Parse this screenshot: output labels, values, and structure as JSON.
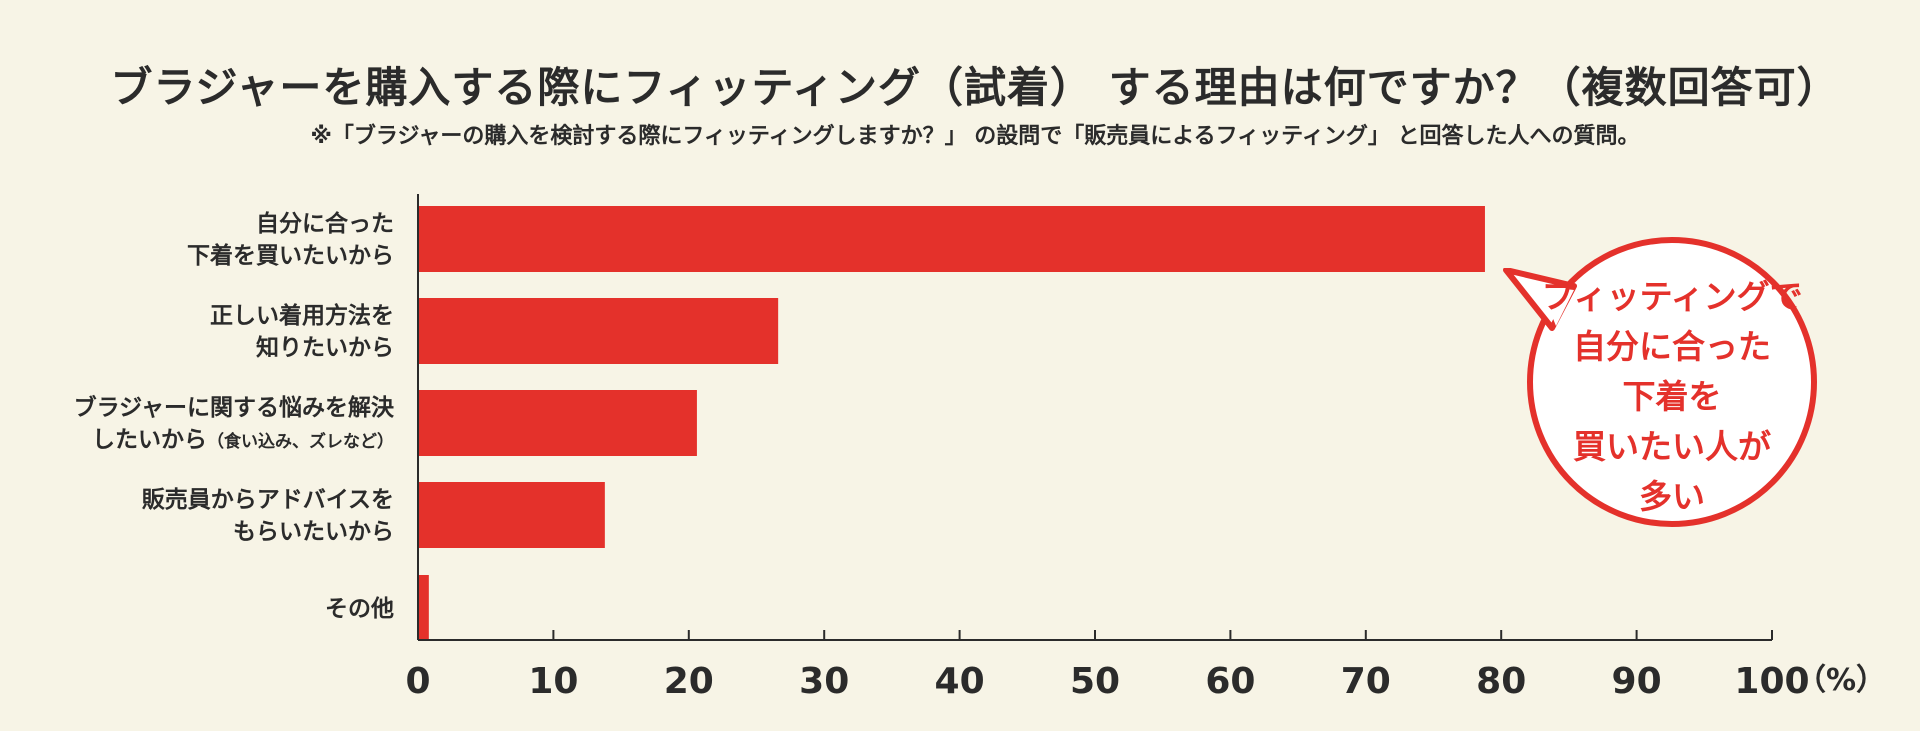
{
  "title": "ブラジャーを購入する際にフィッティング（試着） する理由は何ですか？（複数回答可）",
  "subtitle": "※「ブラジャーの購入を検討する際にフィッティングしますか？」 の設問で「販売員によるフィッティング」 と回答した人への質問。",
  "callout": {
    "lines": [
      "フィッティングで",
      "自分に合った",
      "下着を",
      "買いたい人が",
      "多い"
    ]
  },
  "colors": {
    "bar": "#e4312b",
    "background": "#f7f4e6",
    "callout_text": "#e4312b",
    "axis": "#2b2b2b"
  },
  "chart_data": {
    "type": "bar",
    "orientation": "horizontal",
    "categories": [
      {
        "lines": [
          "自分に合った",
          "下着を買いたいから"
        ]
      },
      {
        "lines": [
          "正しい着用方法を",
          "知りたいから"
        ]
      },
      {
        "lines": [
          "ブラジャーに関する悩みを解決",
          "したいから"
        ],
        "note": "（食い込み、ズレなど）"
      },
      {
        "lines": [
          "販売員からアドバイスを",
          "もらいたいから"
        ]
      },
      {
        "lines": [
          "その他"
        ]
      }
    ],
    "values": [
      78.8,
      26.6,
      20.6,
      13.8,
      0.8
    ],
    "xlim": [
      0,
      100
    ],
    "xticks": [
      "0",
      "10",
      "20",
      "30",
      "40",
      "50",
      "60",
      "70",
      "80",
      "90",
      "100"
    ],
    "unit_label": "（%）",
    "grid": false
  }
}
